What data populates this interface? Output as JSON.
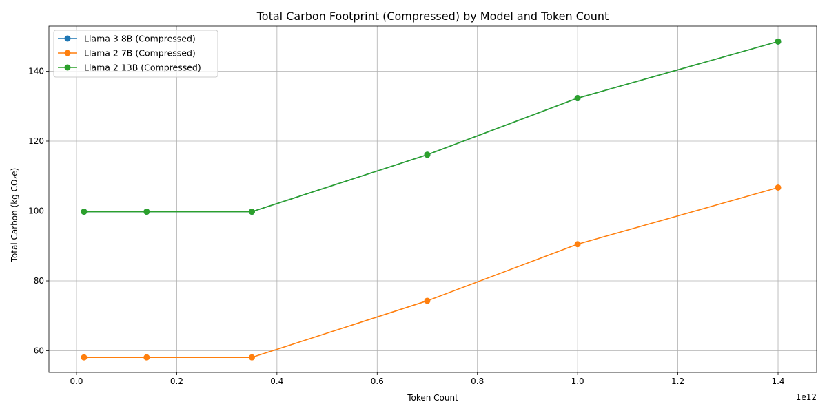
{
  "chart_data": {
    "type": "line",
    "title": "Total Carbon Footprint (Compressed) by Model and Token Count",
    "xlabel": "Token Count",
    "ylabel": "Total Carbon (kg CO₂e)",
    "x_offset_label": "1e12",
    "xlim": [
      -0.055,
      1.477
    ],
    "ylim": [
      53.8,
      152.9
    ],
    "x_ticks": [
      0.0,
      0.2,
      0.4,
      0.6,
      0.8,
      1.0,
      1.2,
      1.4
    ],
    "x_tick_labels": [
      "0.0",
      "0.2",
      "0.4",
      "0.6",
      "0.8",
      "1.0",
      "1.2",
      "1.4"
    ],
    "y_ticks": [
      60,
      80,
      100,
      120,
      140
    ],
    "y_tick_labels": [
      "60",
      "80",
      "100",
      "120",
      "140"
    ],
    "grid": true,
    "legend_position": "top-left",
    "x": [
      0.015,
      0.14,
      0.35,
      0.7,
      1.0,
      1.4
    ],
    "series": [
      {
        "name": "Llama 3 8B (Compressed)",
        "color": "#1f77b4",
        "values": [
          99.8,
          99.8,
          99.8,
          116.1,
          132.3,
          148.5
        ]
      },
      {
        "name": "Llama 2 7B (Compressed)",
        "color": "#ff7f0e",
        "values": [
          58.1,
          58.1,
          58.1,
          74.3,
          90.5,
          106.7
        ]
      },
      {
        "name": "Llama 2 13B (Compressed)",
        "color": "#2ca02c",
        "values": [
          99.8,
          99.8,
          99.8,
          116.1,
          132.3,
          148.5
        ]
      }
    ]
  }
}
